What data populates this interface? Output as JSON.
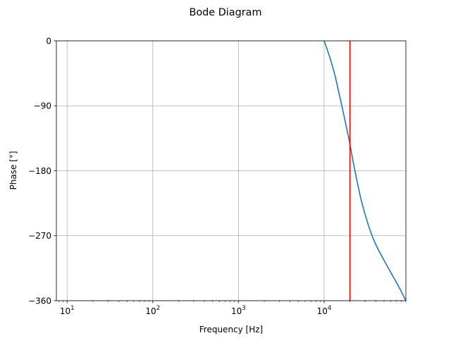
{
  "chart_data": {
    "type": "line",
    "title": "Bode Diagram",
    "xlabel": "Frequency [Hz]",
    "ylabel": "Phase [°]",
    "xscale": "log",
    "xlim": [
      7.5,
      90000
    ],
    "ylim": [
      -360,
      0
    ],
    "grid": true,
    "x_tick_labels": [
      {
        "base": "10",
        "exp": "1",
        "value": 10
      },
      {
        "base": "10",
        "exp": "2",
        "value": 100
      },
      {
        "base": "10",
        "exp": "3",
        "value": 1000
      },
      {
        "base": "10",
        "exp": "4",
        "value": 10000
      }
    ],
    "y_tick_labels": [
      {
        "label": "0",
        "value": 0
      },
      {
        "label": "−90",
        "value": -90
      },
      {
        "label": "−180",
        "value": -180
      },
      {
        "label": "−270",
        "value": -270
      },
      {
        "label": "−360",
        "value": -360
      }
    ],
    "series": [
      {
        "color": "#1f77b4",
        "x": [
          10000,
          11000,
          12000,
          13500,
          15000,
          16500,
          18000,
          20000,
          22000,
          24000,
          27000,
          30000,
          35000,
          40000,
          45000,
          50000,
          60000,
          70000,
          80000,
          90000
        ],
        "y": [
          0,
          -14,
          -28,
          -50,
          -74,
          -96,
          -117,
          -143,
          -170,
          -192,
          -220,
          -240,
          -265,
          -282,
          -294,
          -304,
          -321,
          -335,
          -348,
          -360
        ]
      }
    ],
    "vertical_lines": [
      {
        "x": 20000,
        "color": "#ff0000"
      }
    ]
  }
}
